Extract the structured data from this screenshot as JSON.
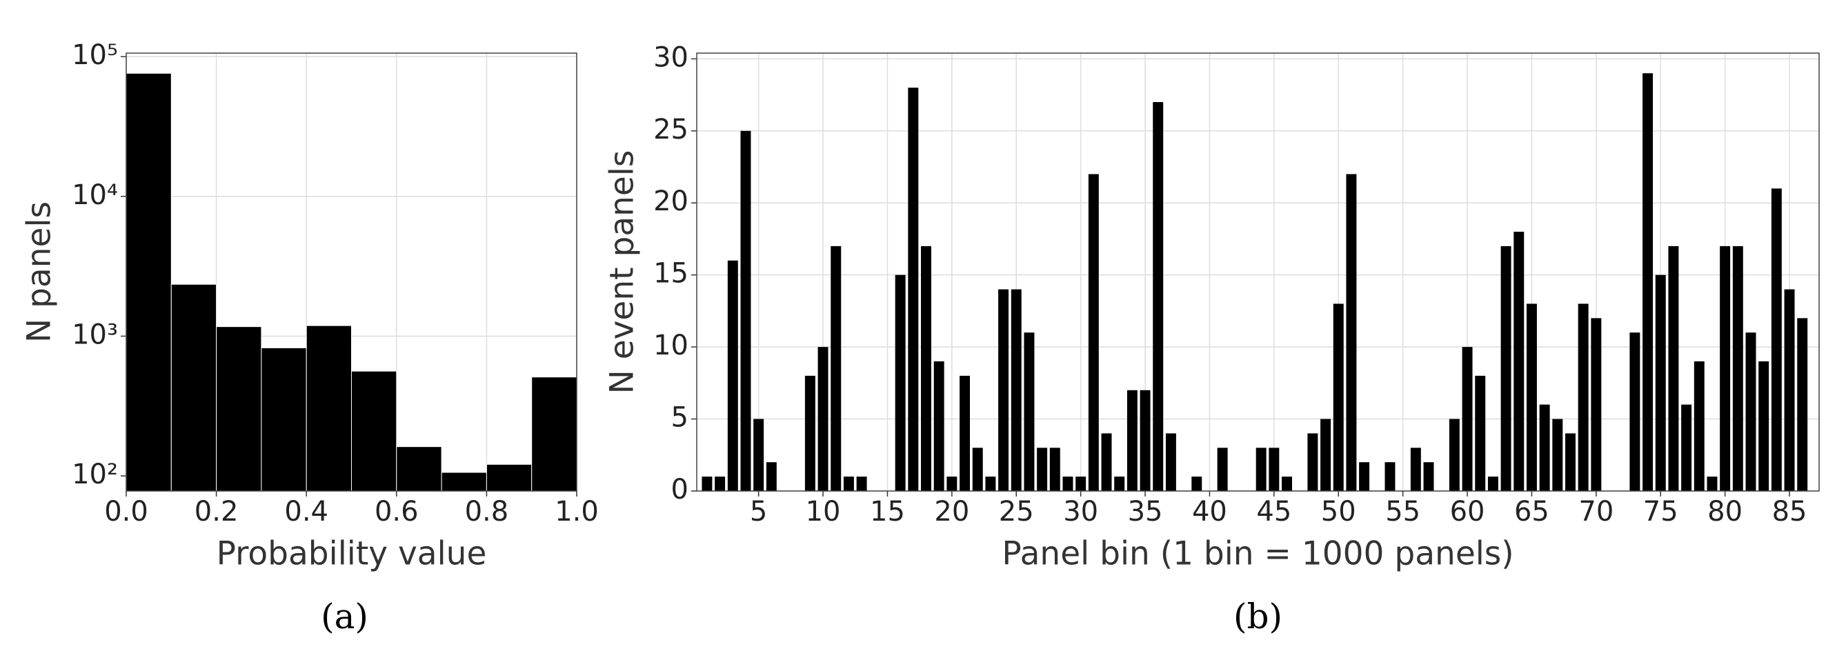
{
  "chart_data": [
    {
      "type": "histogram",
      "panel_label": "(a)",
      "x_label": "Probability value",
      "y_label": "N panels",
      "bins": [
        0,
        0.1,
        0.2,
        0.3,
        0.4,
        0.5,
        0.6,
        0.7,
        0.8,
        0.9,
        1
      ],
      "counts": [
        76000,
        2350,
        1170,
        825,
        1190,
        562,
        162,
        106,
        121,
        510
      ],
      "color": "#000000",
      "log_scale": true,
      "grid": true,
      "xlim": [
        0,
        1
      ],
      "ylim": [
        78,
        106000
      ],
      "xticks": [
        {
          "value": 0,
          "label": "0.0"
        },
        0.2,
        0.4,
        0.6,
        0.8,
        {
          "value": 1,
          "label": "1.0"
        }
      ],
      "yticks": [
        {
          "value": 100,
          "label": "10²"
        },
        {
          "value": 1000,
          "label": "10³"
        },
        {
          "value": 10000,
          "label": "10⁴"
        },
        {
          "value": 100000,
          "label": "10⁵"
        }
      ]
    },
    {
      "type": "bar",
      "panel_label": "(b)",
      "x_label": "Panel bin (1 bin = 1000 panels)",
      "y_label": "N event panels",
      "x": [
        1,
        2,
        3,
        4,
        5,
        6,
        7,
        8,
        9,
        10,
        11,
        12,
        13,
        14,
        15,
        16,
        17,
        18,
        19,
        20,
        21,
        22,
        23,
        24,
        25,
        26,
        27,
        28,
        29,
        30,
        31,
        32,
        33,
        34,
        35,
        36,
        37,
        38,
        39,
        40,
        41,
        42,
        43,
        44,
        45,
        46,
        47,
        48,
        49,
        50,
        51,
        52,
        53,
        54,
        55,
        56,
        57,
        58,
        59,
        60,
        61,
        62,
        63,
        64,
        65,
        66,
        67,
        68,
        69,
        70,
        71,
        72,
        73,
        74,
        75,
        76,
        77,
        78,
        79,
        80,
        81,
        82,
        83,
        84,
        85,
        86
      ],
      "values": [
        1,
        1,
        16,
        25,
        5,
        2,
        0,
        0,
        8,
        10,
        17,
        1,
        1,
        0,
        0,
        15,
        28,
        17,
        9,
        1,
        8,
        3,
        1,
        14,
        14,
        11,
        3,
        3,
        1,
        1,
        22,
        4,
        1,
        7,
        7,
        27,
        4,
        0,
        1,
        0,
        3,
        0,
        0,
        3,
        3,
        1,
        0,
        4,
        5,
        13,
        22,
        2,
        0,
        2,
        0,
        3,
        2,
        0,
        5,
        10,
        8,
        1,
        17,
        18,
        13,
        6,
        5,
        4,
        13,
        12,
        0,
        0,
        11,
        29,
        15,
        17,
        6,
        9,
        1,
        17,
        17,
        11,
        9,
        21,
        14,
        12
      ],
      "color": "#000000",
      "log_scale": false,
      "grid": true,
      "xlim": [
        0.2,
        87.3
      ],
      "ylim": [
        0,
        30.4
      ],
      "xticks": [
        5,
        10,
        15,
        20,
        25,
        30,
        35,
        40,
        45,
        50,
        55,
        60,
        65,
        70,
        75,
        80,
        85
      ],
      "yticks": [
        0,
        5,
        10,
        15,
        20,
        25,
        30
      ]
    }
  ]
}
